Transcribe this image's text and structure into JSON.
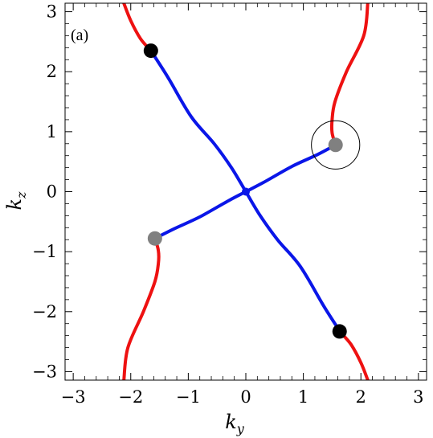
{
  "chart_data": {
    "type": "line",
    "panel_label": "(a)",
    "xlabel": {
      "main": "k",
      "sub": "y"
    },
    "ylabel": {
      "main": "k",
      "sub": "z"
    },
    "xlim": [
      -3.14159,
      3.14159
    ],
    "ylim": [
      -3.14159,
      3.14159
    ],
    "xticks": [
      -3,
      -2,
      -1,
      0,
      1,
      2,
      3
    ],
    "yticks": [
      -3,
      -2,
      -1,
      0,
      1,
      2,
      3
    ],
    "xtick_labels": [
      "−3",
      "−2",
      "−1",
      "0",
      "1",
      "2",
      "3"
    ],
    "ytick_labels": [
      "−3",
      "−2",
      "−1",
      "0",
      "1",
      "2",
      "3"
    ],
    "colors": {
      "red": "#ee1111",
      "blue": "#0a16e8",
      "black_point": "#000000",
      "gray_point": "#808080"
    },
    "series": [
      {
        "color": "red",
        "points": [
          [
            -2.12,
            3.14
          ],
          [
            -2.0,
            2.85
          ],
          [
            -1.83,
            2.55
          ],
          [
            -1.65,
            2.35
          ]
        ]
      },
      {
        "color": "blue",
        "points": [
          [
            -1.65,
            2.35
          ],
          [
            -1.35,
            1.9
          ],
          [
            -0.95,
            1.25
          ],
          [
            -0.55,
            0.8
          ],
          [
            -0.25,
            0.4
          ],
          [
            0.0,
            0.0
          ],
          [
            0.25,
            -0.4
          ],
          [
            0.55,
            -0.8
          ],
          [
            0.95,
            -1.25
          ],
          [
            1.35,
            -1.9
          ],
          [
            1.65,
            -2.35
          ]
        ]
      },
      {
        "color": "red",
        "points": [
          [
            1.65,
            -2.35
          ],
          [
            1.83,
            -2.55
          ],
          [
            2.0,
            -2.85
          ],
          [
            2.12,
            -3.14
          ]
        ]
      },
      {
        "color": "red",
        "points": [
          [
            2.12,
            3.14
          ],
          [
            2.05,
            2.6
          ],
          [
            1.75,
            2.0
          ],
          [
            1.55,
            1.5
          ],
          [
            1.5,
            1.2
          ],
          [
            1.5,
            0.98
          ],
          [
            1.56,
            0.78
          ]
        ]
      },
      {
        "color": "blue",
        "points": [
          [
            1.56,
            0.78
          ],
          [
            1.25,
            0.62
          ],
          [
            0.8,
            0.42
          ],
          [
            0.3,
            0.15
          ],
          [
            0.0,
            0.0
          ],
          [
            -0.3,
            -0.15
          ],
          [
            -0.8,
            -0.42
          ],
          [
            -1.25,
            -0.62
          ],
          [
            -1.58,
            -0.78
          ]
        ]
      },
      {
        "color": "red",
        "points": [
          [
            -1.58,
            -0.78
          ],
          [
            -1.52,
            -0.98
          ],
          [
            -1.52,
            -1.2
          ],
          [
            -1.58,
            -1.5
          ],
          [
            -1.78,
            -2.0
          ],
          [
            -2.05,
            -2.6
          ],
          [
            -2.12,
            -3.14
          ]
        ]
      }
    ],
    "markers": [
      {
        "x": -1.65,
        "y": 2.35,
        "color": "black_point"
      },
      {
        "x": 1.63,
        "y": -2.33,
        "color": "black_point"
      },
      {
        "x": 1.56,
        "y": 0.78,
        "color": "gray_point"
      },
      {
        "x": -1.58,
        "y": -0.78,
        "color": "gray_point"
      }
    ],
    "center_point": {
      "x": 0.0,
      "y": 0.0,
      "color": "blue"
    },
    "circle": {
      "x": 1.56,
      "y": 0.78,
      "r": 0.42
    }
  }
}
